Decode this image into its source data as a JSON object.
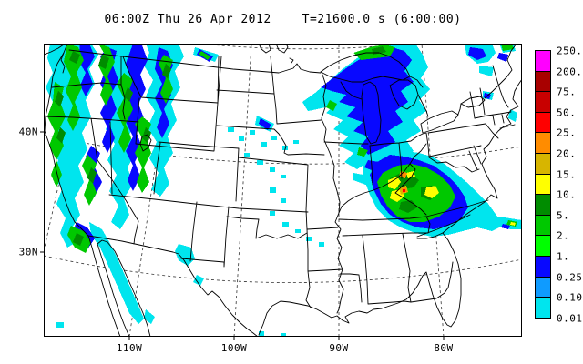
{
  "title": {
    "left": "06:00Z Thu 26 Apr 2012",
    "right": "T=21600.0 s (6:00:00)"
  },
  "axes": {
    "lat": [
      "40N",
      "30N"
    ],
    "lon": [
      "110W",
      "100W",
      "90W",
      "80W"
    ]
  },
  "colorbar": {
    "labels": [
      "250.",
      "200.",
      "75.",
      "50.",
      "25.",
      "20.",
      "15.",
      "10.",
      "5.",
      "2.",
      "1.",
      "0.25",
      "0.10",
      "0.01"
    ],
    "colors": [
      "#FF00FF",
      "#A80000",
      "#C80000",
      "#FF0000",
      "#FF8C00",
      "#D7B500",
      "#FFFF00",
      "#008C00",
      "#00C800",
      "#00FF00",
      "#0808FF",
      "#0F9BFF",
      "#00E5EE"
    ]
  },
  "map_data": {
    "projection_gridlines": {
      "parallels_labeled": [
        "40N",
        "30N"
      ],
      "meridians_labeled": [
        "110W",
        "100W",
        "90W",
        "80W"
      ],
      "style": "dashed"
    },
    "precip_regions": [
      {
        "area": "Pacific Northwest / Great Basin / N California",
        "shades": [
          "cyan",
          "blue",
          "green",
          "dark-green"
        ]
      },
      {
        "area": "Southern California into Baja-Arizona streak",
        "shades": [
          "cyan",
          "blue",
          "green"
        ]
      },
      {
        "area": "Montana-Canada border streak",
        "shades": [
          "cyan",
          "blue",
          "green"
        ]
      },
      {
        "area": "Central plains scattered cells",
        "shades": [
          "cyan"
        ]
      },
      {
        "area": "Upper Midwest / Great Lakes band",
        "shades": [
          "cyan",
          "blue",
          "green"
        ]
      },
      {
        "area": "Ohio Valley storm (Kentucky/West Virginia)",
        "shades": [
          "cyan",
          "blue",
          "green",
          "dark-green",
          "yellow",
          "gold",
          "orange",
          "red"
        ]
      },
      {
        "area": "New England scattered cells",
        "shades": [
          "cyan",
          "blue",
          "green"
        ]
      },
      {
        "area": "Offshore Carolinas cell",
        "shades": [
          "cyan",
          "green",
          "yellow"
        ]
      }
    ]
  }
}
